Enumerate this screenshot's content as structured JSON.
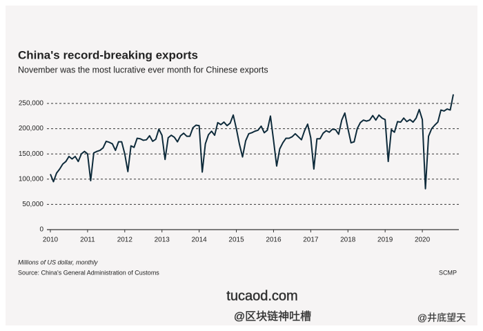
{
  "chart_data": {
    "type": "line",
    "title": "China's record-breaking exports",
    "subtitle": "November was the most lucrative ever month for Chinese exports",
    "unit_note": "Millions of US dollar, monthly",
    "source": "Source: China's General Administration of Customs",
    "credit": "SCMP",
    "categories": [
      "2010",
      null,
      null,
      null,
      null,
      null,
      null,
      null,
      null,
      null,
      null,
      null,
      "2011",
      null,
      null,
      null,
      null,
      null,
      null,
      null,
      null,
      null,
      null,
      null,
      "2012",
      null,
      null,
      null,
      null,
      null,
      null,
      null,
      null,
      null,
      null,
      null,
      "2013",
      null,
      null,
      null,
      null,
      null,
      null,
      null,
      null,
      null,
      null,
      null,
      "2014",
      null,
      null,
      null,
      null,
      null,
      null,
      null,
      null,
      null,
      null,
      null,
      "2015",
      null,
      null,
      null,
      null,
      null,
      null,
      null,
      null,
      null,
      null,
      null,
      "2016",
      null,
      null,
      null,
      null,
      null,
      null,
      null,
      null,
      null,
      null,
      null,
      "2017",
      null,
      null,
      null,
      null,
      null,
      null,
      null,
      null,
      null,
      null,
      null,
      "2018",
      null,
      null,
      null,
      null,
      null,
      null,
      null,
      null,
      null,
      null,
      null,
      "2019",
      null,
      null,
      null,
      null,
      null,
      null,
      null,
      null,
      null,
      null,
      null,
      "2020",
      null,
      null,
      null,
      null,
      null,
      null,
      null,
      null,
      null,
      null
    ],
    "values": [
      110000,
      95000,
      112000,
      120000,
      130000,
      135000,
      145000,
      140000,
      145000,
      135000,
      150000,
      155000,
      150000,
      97000,
      152000,
      155000,
      157000,
      162000,
      175000,
      173000,
      170000,
      157000,
      174000,
      174000,
      150000,
      115000,
      166000,
      163000,
      181000,
      180000,
      177000,
      178000,
      186000,
      175000,
      179000,
      199000,
      187000,
      139000,
      182000,
      187000,
      183000,
      174000,
      186000,
      191000,
      185000,
      185000,
      202000,
      207000,
      206000,
      114000,
      170000,
      188000,
      195000,
      187000,
      212000,
      208000,
      213000,
      206000,
      211000,
      227000,
      200000,
      169000,
      144000,
      176000,
      190000,
      192000,
      195000,
      197000,
      205000,
      192000,
      197000,
      225000,
      177000,
      126000,
      160000,
      172000,
      181000,
      181000,
      184000,
      190000,
      184000,
      178000,
      196000,
      209000,
      182000,
      120000,
      180000,
      180000,
      191000,
      196000,
      193000,
      199000,
      198000,
      189000,
      217000,
      231000,
      200000,
      172000,
      174000,
      200000,
      212000,
      217000,
      215000,
      217000,
      226000,
      217000,
      227000,
      221000,
      218000,
      135000,
      198000,
      193000,
      214000,
      213000,
      221000,
      214000,
      218000,
      213000,
      221000,
      238000,
      218000,
      81000,
      185000,
      200000,
      207000,
      213000,
      237000,
      235000,
      239000,
      237000,
      268000
    ],
    "color": "#0d2a3a",
    "ylim": [
      0,
      250000
    ],
    "yticks": [
      0,
      {
        "value": 50000,
        "label": "50,000"
      },
      {
        "value": 100000,
        "label": "100,000"
      },
      {
        "value": 150000,
        "label": "150,000"
      },
      {
        "value": 200000,
        "label": "200,000"
      },
      {
        "value": 250000,
        "label": "250,000"
      }
    ],
    "grid": true
  },
  "watermarks": [
    "tucaod.com",
    "@区块链神吐槽",
    "@井底望天"
  ]
}
